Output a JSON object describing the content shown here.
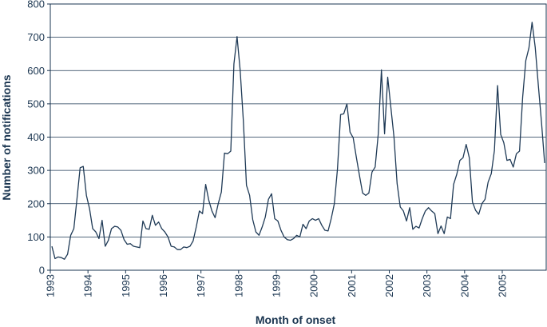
{
  "chart_data": {
    "type": "line",
    "title": "",
    "xlabel": "Month of onset",
    "ylabel": "Number of notifications",
    "ylim": [
      0,
      800
    ],
    "yticks": [
      0,
      100,
      200,
      300,
      400,
      500,
      600,
      700,
      800
    ],
    "xlim": [
      "1993-01",
      "2005-12"
    ],
    "xticks": [
      "1993",
      "1994",
      "1995",
      "1996",
      "1997",
      "1998",
      "1999",
      "2000",
      "2001",
      "2002",
      "2003",
      "2004",
      "2005"
    ],
    "grid": "horizontal",
    "legend": "none",
    "line_color": "#1f3a56",
    "series": [
      {
        "values": [
          72,
          35,
          40,
          38,
          33,
          48,
          105,
          125,
          215,
          308,
          312,
          225,
          185,
          125,
          115,
          95,
          150,
          72,
          90,
          125,
          132,
          130,
          120,
          92,
          78,
          80,
          72,
          70,
          68,
          148,
          125,
          123,
          165,
          135,
          145,
          125,
          115,
          100,
          72,
          70,
          62,
          62,
          70,
          68,
          72,
          88,
          130,
          178,
          170,
          258,
          210,
          178,
          158,
          200,
          235,
          352,
          350,
          358,
          620,
          702,
          600,
          450,
          255,
          225,
          152,
          115,
          105,
          130,
          160,
          213,
          230,
          155,
          148,
          120,
          100,
          92,
          90,
          95,
          105,
          100,
          138,
          125,
          148,
          155,
          150,
          155,
          135,
          120,
          118,
          155,
          200,
          305,
          468,
          470,
          500,
          415,
          398,
          340,
          285,
          232,
          225,
          232,
          295,
          310,
          410,
          602,
          410,
          580,
          490,
          400,
          260,
          190,
          178,
          148,
          188,
          123,
          132,
          127,
          155,
          178,
          188,
          178,
          170,
          110,
          133,
          110,
          160,
          155,
          258,
          288,
          330,
          338,
          378,
          338,
          205,
          180,
          168,
          200,
          213,
          265,
          290,
          360,
          555,
          408,
          383,
          330,
          333,
          310,
          350,
          358,
          520,
          630,
          668,
          745,
          670,
          555,
          445,
          322
        ]
      }
    ]
  }
}
